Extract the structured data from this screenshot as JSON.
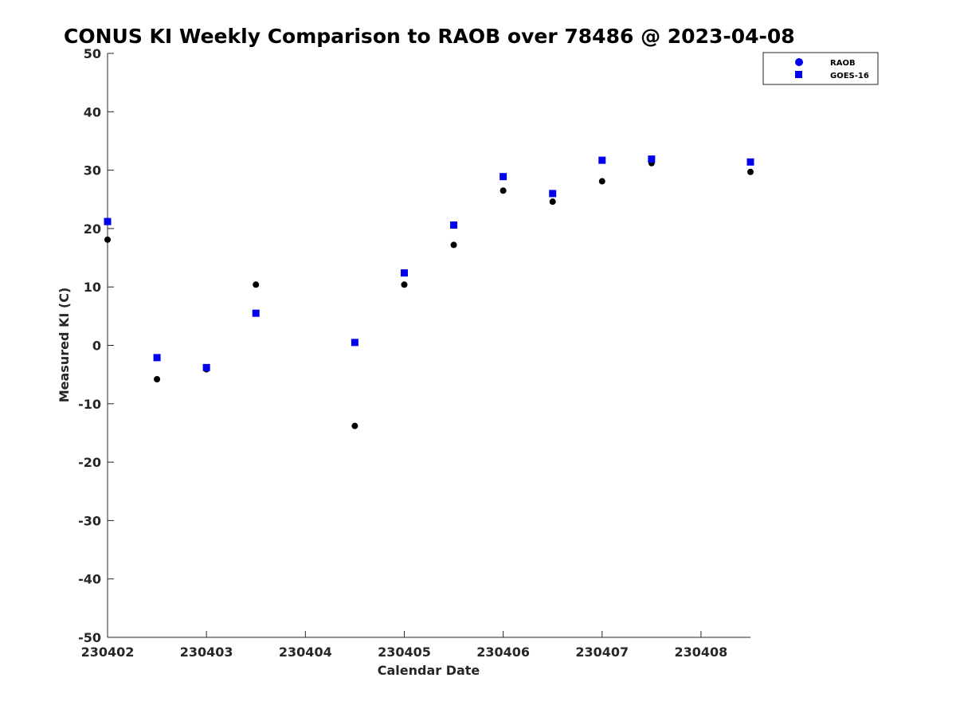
{
  "chart_data": {
    "type": "scatter",
    "title": "CONUS KI Weekly Comparison to RAOB over 78486 @ 2023-04-08",
    "xlabel": "Calendar Date",
    "ylabel": "Measured KI (C)",
    "x_tick_labels": [
      "230402",
      "230403",
      "230404",
      "230405",
      "230406",
      "230407",
      "230408"
    ],
    "x_ticks": [
      "2023-04-02",
      "2023-04-03",
      "2023-04-04",
      "2023-04-05",
      "2023-04-06",
      "2023-04-07",
      "2023-04-08"
    ],
    "xlim": [
      "2023-04-02 00:00",
      "2023-04-08 12:00"
    ],
    "ylim": [
      -50,
      50
    ],
    "y_ticks": [
      50,
      40,
      30,
      20,
      10,
      0,
      -10,
      -20,
      -30,
      -40,
      -50
    ],
    "grid": false,
    "legend_position": "top-right",
    "series": [
      {
        "name": "RAOB",
        "marker": "circle",
        "legend_color": "#0000ee",
        "point_color": "#000000",
        "points": [
          {
            "x": "2023-04-02 00:00",
            "y": 18.1
          },
          {
            "x": "2023-04-02 12:00",
            "y": -5.8
          },
          {
            "x": "2023-04-03 00:00",
            "y": -4.1
          },
          {
            "x": "2023-04-03 12:00",
            "y": 10.4
          },
          {
            "x": "2023-04-04 12:00",
            "y": -13.8
          },
          {
            "x": "2023-04-05 00:00",
            "y": 10.4
          },
          {
            "x": "2023-04-05 12:00",
            "y": 17.2
          },
          {
            "x": "2023-04-06 00:00",
            "y": 26.5
          },
          {
            "x": "2023-04-06 12:00",
            "y": 24.6
          },
          {
            "x": "2023-04-07 00:00",
            "y": 28.1
          },
          {
            "x": "2023-04-07 12:00",
            "y": 31.2
          },
          {
            "x": "2023-04-08 12:00",
            "y": 29.7
          }
        ]
      },
      {
        "name": "GOES-16",
        "marker": "square",
        "legend_color": "#0000ee",
        "point_color": "#0000ee",
        "points": [
          {
            "x": "2023-04-02 00:00",
            "y": 21.2
          },
          {
            "x": "2023-04-02 12:00",
            "y": -2.1
          },
          {
            "x": "2023-04-03 00:00",
            "y": -3.8
          },
          {
            "x": "2023-04-03 12:00",
            "y": 5.5
          },
          {
            "x": "2023-04-04 12:00",
            "y": 0.5
          },
          {
            "x": "2023-04-05 00:00",
            "y": 12.4
          },
          {
            "x": "2023-04-05 12:00",
            "y": 20.6
          },
          {
            "x": "2023-04-06 00:00",
            "y": 28.9
          },
          {
            "x": "2023-04-06 12:00",
            "y": 26.0
          },
          {
            "x": "2023-04-07 00:00",
            "y": 31.7
          },
          {
            "x": "2023-04-07 12:00",
            "y": 31.9
          },
          {
            "x": "2023-04-08 12:00",
            "y": 31.4
          }
        ]
      }
    ]
  }
}
